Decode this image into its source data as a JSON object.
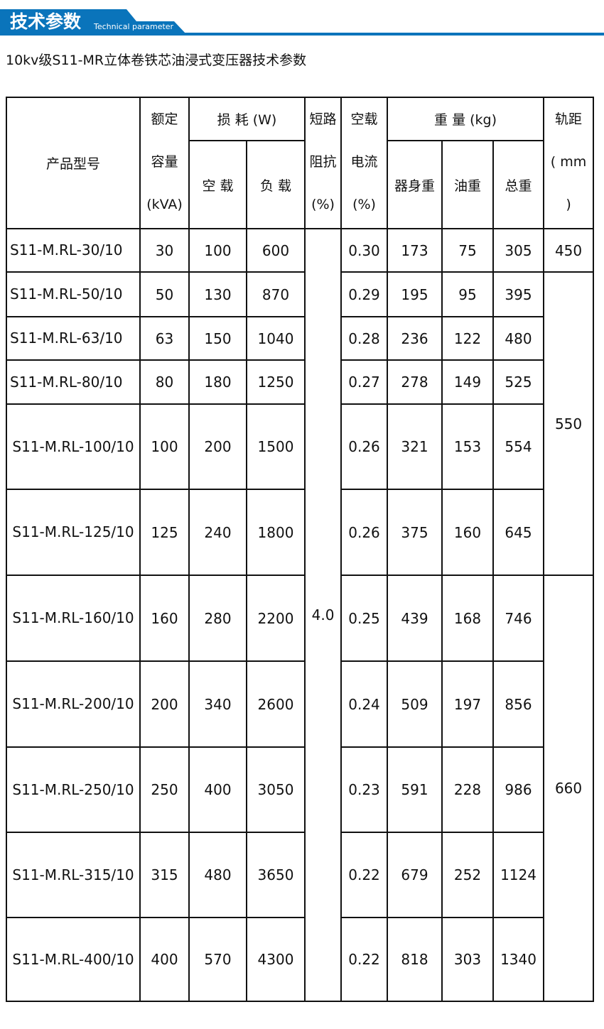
{
  "header": {
    "title": "技术参数",
    "subtitle": "Technical parameter",
    "accent": "#0a74bb"
  },
  "page_title": "10kv级S11-MR立体卷铁芯油浸式变压器技术参数",
  "table": {
    "headers": {
      "model": "产品型号",
      "capacity_l1": "额定",
      "capacity_l2": "容量",
      "capacity_l3": "(kVA)",
      "loss": "损 耗 (W)",
      "loss_noload": "空 载",
      "loss_load": "负 载",
      "impedance_l1": "短路",
      "impedance_l2": "阻抗",
      "impedance_l3": "(%)",
      "current_l1": "空载",
      "current_l2": "电流",
      "current_l3": "(%)",
      "weight": "重 量 (kg)",
      "weight_body": "器身重",
      "weight_oil": "油重",
      "weight_total": "总重",
      "gauge_l1": "轨距",
      "gauge_l2": "( mm",
      ")": ")",
      "gauge_l3": ")"
    },
    "impedance": "4.0",
    "gauge": [
      "450",
      "550",
      "660"
    ],
    "rows": [
      {
        "model": "S11-M.RL-30/10",
        "cap": "30",
        "nl": "100",
        "ll": "600",
        "cur": "0.30",
        "body": "173",
        "oil": "75",
        "total": "305"
      },
      {
        "model": "S11-M.RL-50/10",
        "cap": "50",
        "nl": "130",
        "ll": "870",
        "cur": "0.29",
        "body": "195",
        "oil": "95",
        "total": "395"
      },
      {
        "model": "S11-M.RL-63/10",
        "cap": "63",
        "nl": "150",
        "ll": "1040",
        "cur": "0.28",
        "body": "236",
        "oil": "122",
        "total": "480"
      },
      {
        "model": "S11-M.RL-80/10",
        "cap": "80",
        "nl": "180",
        "ll": "1250",
        "cur": "0.27",
        "body": "278",
        "oil": "149",
        "total": "525"
      },
      {
        "model": "S11-M.RL-100/10",
        "cap": "100",
        "nl": "200",
        "ll": "1500",
        "cur": "0.26",
        "body": "321",
        "oil": "153",
        "total": "554"
      },
      {
        "model": "S11-M.RL-125/10",
        "cap": "125",
        "nl": "240",
        "ll": "1800",
        "cur": "0.26",
        "body": "375",
        "oil": "160",
        "total": "645"
      },
      {
        "model": "S11-M.RL-160/10",
        "cap": "160",
        "nl": "280",
        "ll": "2200",
        "cur": "0.25",
        "body": "439",
        "oil": "168",
        "total": "746"
      },
      {
        "model": "S11-M.RL-200/10",
        "cap": "200",
        "nl": "340",
        "ll": "2600",
        "cur": "0.24",
        "body": "509",
        "oil": "197",
        "total": "856"
      },
      {
        "model": "S11-M.RL-250/10",
        "cap": "250",
        "nl": "400",
        "ll": "3050",
        "cur": "0.23",
        "body": "591",
        "oil": "228",
        "total": "986"
      },
      {
        "model": "S11-M.RL-315/10",
        "cap": "315",
        "nl": "480",
        "ll": "3650",
        "cur": "0.22",
        "body": "679",
        "oil": "252",
        "total": "1124"
      },
      {
        "model": "S11-M.RL-400/10",
        "cap": "400",
        "nl": "570",
        "ll": "4300",
        "cur": "0.22",
        "body": "818",
        "oil": "303",
        "total": "1340"
      }
    ]
  }
}
